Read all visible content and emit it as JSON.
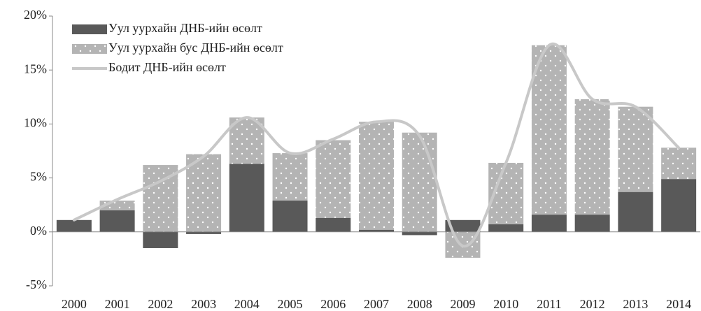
{
  "chart_data": {
    "type": "bar",
    "stacked": true,
    "categories": [
      "2000",
      "2001",
      "2002",
      "2003",
      "2004",
      "2005",
      "2006",
      "2007",
      "2008",
      "2009",
      "2010",
      "2011",
      "2012",
      "2013",
      "2014"
    ],
    "series": [
      {
        "name": "Уул уурхайн ДНБ-ийн өсөлт",
        "type": "bar",
        "color": "#595959",
        "values": [
          1.1,
          2.0,
          -1.5,
          -0.2,
          6.3,
          2.9,
          1.3,
          0.2,
          -0.3,
          1.1,
          0.7,
          1.6,
          1.6,
          3.7,
          4.9
        ]
      },
      {
        "name": "Уул уурхайн бус ДНБ-ийн өсөлт",
        "type": "bar",
        "color": "#b4b4b4",
        "pattern": "dots",
        "values": [
          0,
          0.9,
          6.2,
          7.2,
          4.3,
          4.4,
          7.2,
          10.0,
          9.2,
          -2.4,
          5.7,
          15.7,
          10.7,
          7.9,
          2.9
        ]
      },
      {
        "name": "Бодит ДНБ-ийн өсөлт",
        "type": "line",
        "color": "#c8c8c8",
        "smooth": true,
        "values": [
          1.1,
          3.0,
          4.7,
          7.0,
          10.6,
          7.3,
          8.6,
          10.2,
          8.9,
          -1.3,
          6.4,
          17.3,
          12.3,
          11.6,
          7.8
        ]
      }
    ],
    "ylim": [
      -5,
      20
    ],
    "yticks": [
      {
        "value": -5,
        "label": "-5%"
      },
      {
        "value": 0,
        "label": "0%"
      },
      {
        "value": 5,
        "label": "5%"
      },
      {
        "value": 10,
        "label": "10%"
      },
      {
        "value": 15,
        "label": "15%"
      },
      {
        "value": 20,
        "label": "20%"
      }
    ],
    "legend": "top-left"
  }
}
